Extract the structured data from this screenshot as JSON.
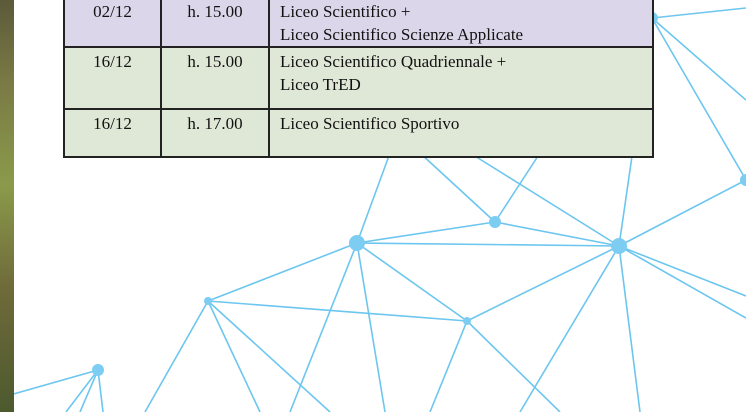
{
  "table": {
    "rows": [
      [
        "02/12",
        "h. 15.00",
        [
          "Liceo Scientifico +",
          "Liceo Scientifico Scienze Applicate"
        ]
      ],
      [
        "16/12",
        "h. 15.00",
        [
          "Liceo Scientifico Quadriennale +",
          "Liceo TrED"
        ]
      ],
      [
        "16/12",
        "h. 17.00",
        [
          "Liceo Scientifico Sportivo"
        ]
      ]
    ]
  }
}
